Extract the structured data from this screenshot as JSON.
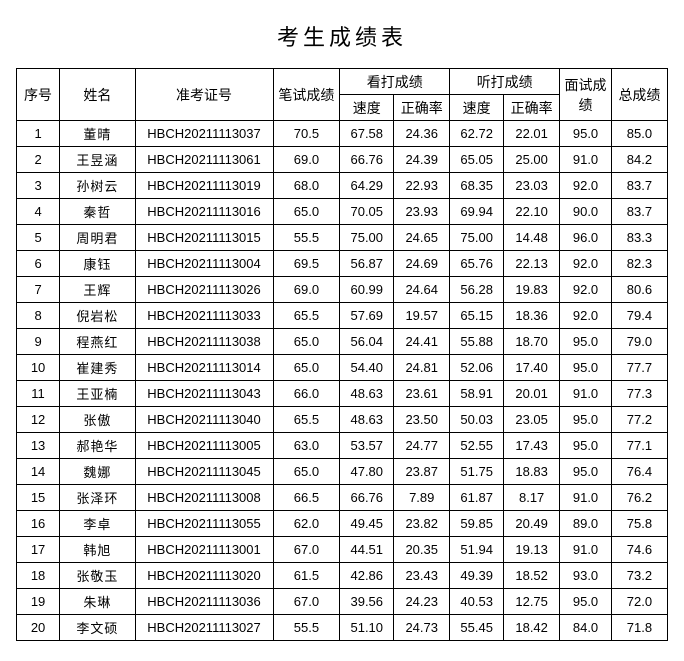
{
  "title": "考生成绩表",
  "headers": {
    "seq": "序号",
    "name": "姓名",
    "exam_id": "准考证号",
    "written": "笔试成绩",
    "look_type": "看打成绩",
    "listen_type": "听打成绩",
    "speed": "速度",
    "accuracy": "正确率",
    "interview": "面试成绩",
    "total": "总成绩"
  },
  "rows": [
    {
      "seq": "1",
      "name": "董晴",
      "id": "HBCH20211113037",
      "written": "70.5",
      "ls": "67.58",
      "la": "24.36",
      "ts": "62.72",
      "ta": "22.01",
      "iv": "95.0",
      "tot": "85.0"
    },
    {
      "seq": "2",
      "name": "王昱涵",
      "id": "HBCH20211113061",
      "written": "69.0",
      "ls": "66.76",
      "la": "24.39",
      "ts": "65.05",
      "ta": "25.00",
      "iv": "91.0",
      "tot": "84.2"
    },
    {
      "seq": "3",
      "name": "孙树云",
      "id": "HBCH20211113019",
      "written": "68.0",
      "ls": "64.29",
      "la": "22.93",
      "ts": "68.35",
      "ta": "23.03",
      "iv": "92.0",
      "tot": "83.7"
    },
    {
      "seq": "4",
      "name": "秦哲",
      "id": "HBCH20211113016",
      "written": "65.0",
      "ls": "70.05",
      "la": "23.93",
      "ts": "69.94",
      "ta": "22.10",
      "iv": "90.0",
      "tot": "83.7"
    },
    {
      "seq": "5",
      "name": "周明君",
      "id": "HBCH20211113015",
      "written": "55.5",
      "ls": "75.00",
      "la": "24.65",
      "ts": "75.00",
      "ta": "14.48",
      "iv": "96.0",
      "tot": "83.3"
    },
    {
      "seq": "6",
      "name": "康钰",
      "id": "HBCH20211113004",
      "written": "69.5",
      "ls": "56.87",
      "la": "24.69",
      "ts": "65.76",
      "ta": "22.13",
      "iv": "92.0",
      "tot": "82.3"
    },
    {
      "seq": "7",
      "name": "王辉",
      "id": "HBCH20211113026",
      "written": "69.0",
      "ls": "60.99",
      "la": "24.64",
      "ts": "56.28",
      "ta": "19.83",
      "iv": "92.0",
      "tot": "80.6"
    },
    {
      "seq": "8",
      "name": "倪岩松",
      "id": "HBCH20211113033",
      "written": "65.5",
      "ls": "57.69",
      "la": "19.57",
      "ts": "65.15",
      "ta": "18.36",
      "iv": "92.0",
      "tot": "79.4"
    },
    {
      "seq": "9",
      "name": "程燕红",
      "id": "HBCH20211113038",
      "written": "65.0",
      "ls": "56.04",
      "la": "24.41",
      "ts": "55.88",
      "ta": "18.70",
      "iv": "95.0",
      "tot": "79.0"
    },
    {
      "seq": "10",
      "name": "崔建秀",
      "id": "HBCH20211113014",
      "written": "65.0",
      "ls": "54.40",
      "la": "24.81",
      "ts": "52.06",
      "ta": "17.40",
      "iv": "95.0",
      "tot": "77.7"
    },
    {
      "seq": "11",
      "name": "王亚楠",
      "id": "HBCH20211113043",
      "written": "66.0",
      "ls": "48.63",
      "la": "23.61",
      "ts": "58.91",
      "ta": "20.01",
      "iv": "91.0",
      "tot": "77.3"
    },
    {
      "seq": "12",
      "name": "张傲",
      "id": "HBCH20211113040",
      "written": "65.5",
      "ls": "48.63",
      "la": "23.50",
      "ts": "50.03",
      "ta": "23.05",
      "iv": "95.0",
      "tot": "77.2"
    },
    {
      "seq": "13",
      "name": "郝艳华",
      "id": "HBCH20211113005",
      "written": "63.0",
      "ls": "53.57",
      "la": "24.77",
      "ts": "52.55",
      "ta": "17.43",
      "iv": "95.0",
      "tot": "77.1"
    },
    {
      "seq": "14",
      "name": "魏娜",
      "id": "HBCH20211113045",
      "written": "65.0",
      "ls": "47.80",
      "la": "23.87",
      "ts": "51.75",
      "ta": "18.83",
      "iv": "95.0",
      "tot": "76.4"
    },
    {
      "seq": "15",
      "name": "张泽环",
      "id": "HBCH20211113008",
      "written": "66.5",
      "ls": "66.76",
      "la": "7.89",
      "ts": "61.87",
      "ta": "8.17",
      "iv": "91.0",
      "tot": "76.2"
    },
    {
      "seq": "16",
      "name": "李卓",
      "id": "HBCH20211113055",
      "written": "62.0",
      "ls": "49.45",
      "la": "23.82",
      "ts": "59.85",
      "ta": "20.49",
      "iv": "89.0",
      "tot": "75.8"
    },
    {
      "seq": "17",
      "name": "韩旭",
      "id": "HBCH20211113001",
      "written": "67.0",
      "ls": "44.51",
      "la": "20.35",
      "ts": "51.94",
      "ta": "19.13",
      "iv": "91.0",
      "tot": "74.6"
    },
    {
      "seq": "18",
      "name": "张敬玉",
      "id": "HBCH20211113020",
      "written": "61.5",
      "ls": "42.86",
      "la": "23.43",
      "ts": "49.39",
      "ta": "18.52",
      "iv": "93.0",
      "tot": "73.2"
    },
    {
      "seq": "19",
      "name": "朱琳",
      "id": "HBCH20211113036",
      "written": "67.0",
      "ls": "39.56",
      "la": "24.23",
      "ts": "40.53",
      "ta": "12.75",
      "iv": "95.0",
      "tot": "72.0"
    },
    {
      "seq": "20",
      "name": "李文硕",
      "id": "HBCH20211113027",
      "written": "55.5",
      "ls": "51.10",
      "la": "24.73",
      "ts": "55.45",
      "ta": "18.42",
      "iv": "84.0",
      "tot": "71.8"
    }
  ]
}
